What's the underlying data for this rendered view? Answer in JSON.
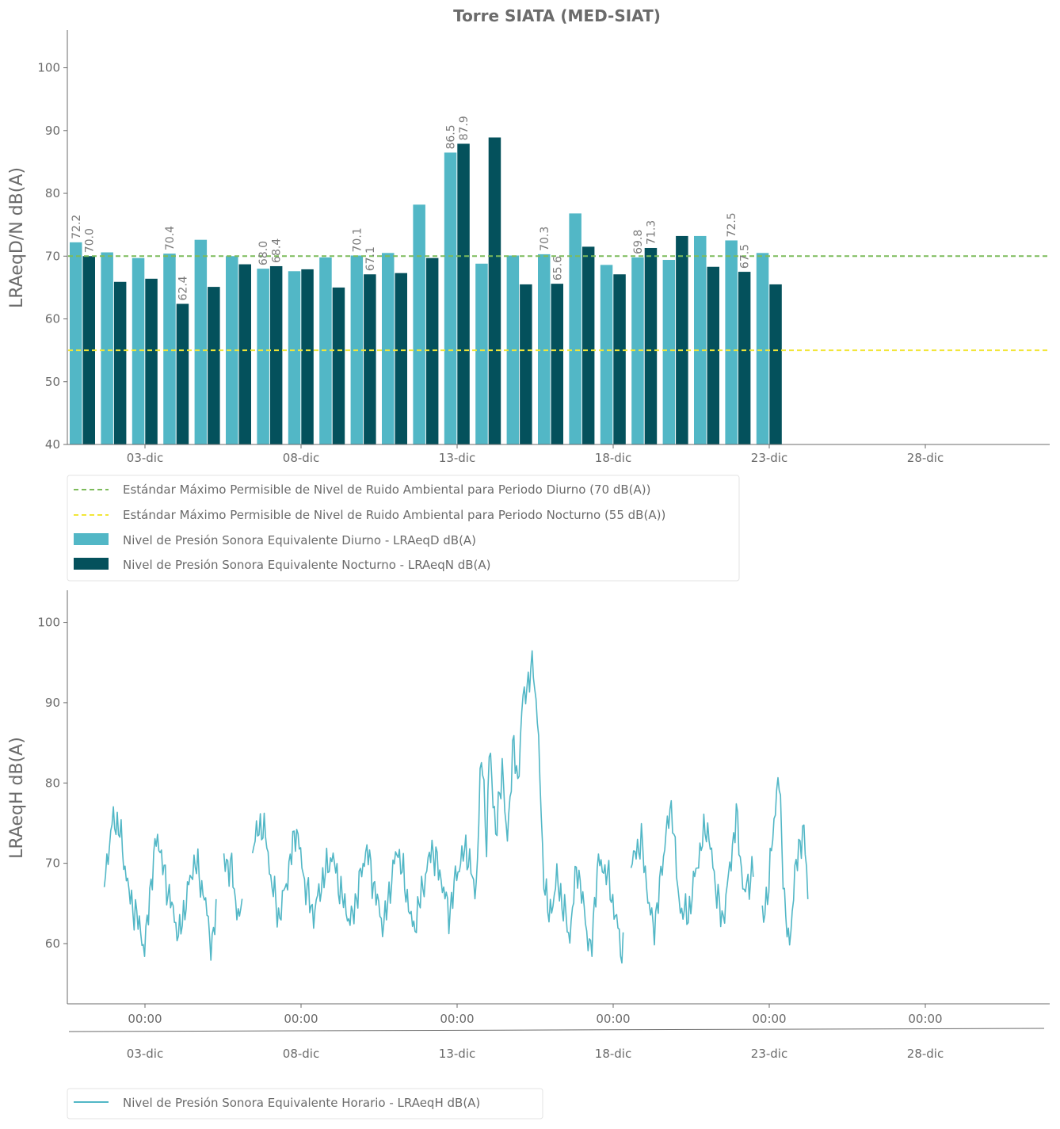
{
  "title": "Torre SIATA (MED-SIAT)",
  "colors": {
    "day": "#52b7c6",
    "night": "#04515c",
    "std_day": "#7dbb5b",
    "std_night": "#f2e637",
    "hourly": "#52b7c6",
    "axis": "#6b6b6b",
    "text": "#6b6b6b"
  },
  "chart_data": [
    {
      "type": "bar",
      "ylabel": "LRAeqD/N dB(A)",
      "ylim": [
        40,
        106
      ],
      "yticks": [
        40,
        50,
        60,
        70,
        80,
        90,
        100
      ],
      "xticks": [
        "03-dic",
        "08-dic",
        "13-dic",
        "18-dic",
        "23-dic",
        "28-dic"
      ],
      "categories": [
        "01-dic",
        "02-dic",
        "03-dic",
        "04-dic",
        "05-dic",
        "06-dic",
        "07-dic",
        "08-dic",
        "09-dic",
        "10-dic",
        "11-dic",
        "12-dic",
        "13-dic",
        "14-dic",
        "15-dic",
        "16-dic",
        "17-dic",
        "18-dic",
        "19-dic",
        "20-dic",
        "21-dic",
        "22-dic",
        "23-dic"
      ],
      "series": [
        {
          "name": "Nivel de Presión Sonora Equivalente Diurno - LRAeqD dB(A)",
          "key": "day",
          "values": [
            72.2,
            70.6,
            69.7,
            70.4,
            72.6,
            70.0,
            68.0,
            67.6,
            69.8,
            70.1,
            70.5,
            78.2,
            86.5,
            68.8,
            70.1,
            70.3,
            76.8,
            68.6,
            69.8,
            69.4,
            73.2,
            72.5,
            70.5
          ]
        },
        {
          "name": "Nivel de Presión Sonora Equivalente Nocturno - LRAeqN dB(A)",
          "key": "night",
          "values": [
            70.0,
            65.9,
            66.4,
            62.4,
            65.1,
            68.7,
            68.4,
            67.9,
            65.0,
            67.1,
            67.3,
            69.7,
            87.9,
            88.9,
            65.5,
            65.6,
            71.5,
            67.1,
            71.3,
            73.2,
            68.3,
            67.5,
            65.5
          ]
        }
      ],
      "data_labels": [
        {
          "day": 0,
          "series": "day",
          "text": "72.2"
        },
        {
          "day": 0,
          "series": "night",
          "text": "70.0"
        },
        {
          "day": 3,
          "series": "day",
          "text": "70.4"
        },
        {
          "day": 3,
          "series": "night",
          "text": "62.4"
        },
        {
          "day": 6,
          "series": "day",
          "text": "68.0"
        },
        {
          "day": 6,
          "series": "night",
          "text": "68.4"
        },
        {
          "day": 9,
          "series": "day",
          "text": "70.1"
        },
        {
          "day": 9,
          "series": "night",
          "text": "67.1"
        },
        {
          "day": 12,
          "series": "day",
          "text": "86.5"
        },
        {
          "day": 12,
          "series": "night",
          "text": "87.9"
        },
        {
          "day": 15,
          "series": "day",
          "text": "70.3"
        },
        {
          "day": 15,
          "series": "night",
          "text": "65.6"
        },
        {
          "day": 18,
          "series": "day",
          "text": "69.8"
        },
        {
          "day": 18,
          "series": "night",
          "text": "71.3"
        },
        {
          "day": 21,
          "series": "day",
          "text": "72.5"
        },
        {
          "day": 21,
          "series": "night",
          "text": "67.5"
        }
      ],
      "reference_lines": [
        {
          "name": "Estándar Máximo Permisible de Nivel de Ruido Ambiental para Periodo Diurno (70 dB(A))",
          "y": 70,
          "color_key": "std_day",
          "style": "dashed"
        },
        {
          "name": "Estándar Máximo Permisible de Nivel de Ruido Ambiental para Periodo Nocturno (55 dB(A))",
          "y": 55,
          "color_key": "std_night",
          "style": "dashed"
        }
      ],
      "legend_placement": "below"
    },
    {
      "type": "line",
      "ylabel": "LRAeqH dB(A)",
      "ylim": [
        52.5,
        104
      ],
      "yticks": [
        60,
        70,
        80,
        90,
        100
      ],
      "xticks_time": [
        "00:00",
        "00:00",
        "00:00",
        "00:00",
        "00:00",
        "00:00"
      ],
      "xticks_date": [
        "03-dic",
        "08-dic",
        "13-dic",
        "18-dic",
        "23-dic",
        "28-dic"
      ],
      "x_range_days": [
        "01-dic",
        "23-dic"
      ],
      "x_step": "1 hora",
      "series": [
        {
          "name": "Nivel de Presión Sonora Equivalente Horario - LRAeqH dB(A)",
          "key": "hourly"
        }
      ],
      "keypoints": [
        [
          0.7,
          68
        ],
        [
          1.0,
          75.8
        ],
        [
          1.2,
          74
        ],
        [
          1.5,
          66
        ],
        [
          1.85,
          62
        ],
        [
          2.0,
          58.9
        ],
        [
          2.15,
          66
        ],
        [
          2.4,
          73.8
        ],
        [
          2.6,
          69
        ],
        [
          2.9,
          64
        ],
        [
          3.1,
          60.8
        ],
        [
          3.35,
          66
        ],
        [
          3.6,
          70.5
        ],
        [
          3.9,
          66
        ],
        [
          4.15,
          59.4
        ],
        [
          4.3,
          64.5
        ],
        [
          4.55,
          70.5
        ],
        [
          4.8,
          69
        ],
        [
          4.95,
          64
        ],
        [
          5.1,
          63.5
        ],
        [
          5.5,
          73
        ],
        [
          5.8,
          75
        ],
        [
          6.05,
          68
        ],
        [
          6.3,
          63
        ],
        [
          6.6,
          69
        ],
        [
          6.85,
          74.6
        ],
        [
          7.1,
          68
        ],
        [
          7.4,
          63.5
        ],
        [
          7.7,
          68
        ],
        [
          8.0,
          71
        ],
        [
          8.3,
          66
        ],
        [
          8.6,
          62.5
        ],
        [
          8.85,
          67
        ],
        [
          9.1,
          72
        ],
        [
          9.4,
          66
        ],
        [
          9.65,
          62
        ],
        [
          9.9,
          68
        ],
        [
          10.1,
          72
        ],
        [
          10.4,
          66
        ],
        [
          10.6,
          61.5
        ],
        [
          10.85,
          66
        ],
        [
          11.2,
          72
        ],
        [
          11.5,
          68
        ],
        [
          11.75,
          63.5
        ],
        [
          12.0,
          69
        ],
        [
          12.3,
          72
        ],
        [
          12.6,
          66
        ],
        [
          12.8,
          84.6
        ],
        [
          12.95,
          72
        ],
        [
          13.05,
          85
        ],
        [
          13.25,
          73
        ],
        [
          13.45,
          82.5
        ],
        [
          13.6,
          72
        ],
        [
          13.8,
          85
        ],
        [
          13.95,
          80
        ],
        [
          14.1,
          90
        ],
        [
          14.3,
          93
        ],
        [
          14.45,
          94.4
        ],
        [
          14.6,
          87
        ],
        [
          14.75,
          70
        ],
        [
          14.95,
          63
        ],
        [
          15.2,
          68
        ],
        [
          15.45,
          64
        ],
        [
          15.6,
          60.5
        ],
        [
          15.85,
          70
        ],
        [
          16.15,
          62
        ],
        [
          16.3,
          58.4
        ],
        [
          16.5,
          70
        ],
        [
          16.8,
          69
        ],
        [
          17.1,
          63
        ],
        [
          17.3,
          58.6
        ],
        [
          17.6,
          70
        ],
        [
          17.9,
          73
        ],
        [
          18.15,
          65
        ],
        [
          18.3,
          61.5
        ],
        [
          18.5,
          67
        ],
        [
          18.7,
          74
        ],
        [
          18.9,
          77
        ],
        [
          19.1,
          65
        ],
        [
          19.4,
          63.3
        ],
        [
          19.7,
          70
        ],
        [
          20.0,
          75
        ],
        [
          20.3,
          67
        ],
        [
          20.5,
          62.5
        ],
        [
          20.7,
          68
        ],
        [
          20.95,
          76
        ],
        [
          21.2,
          66
        ],
        [
          21.5,
          69.5
        ],
        [
          21.8,
          62.5
        ],
        [
          22.0,
          68
        ],
        [
          22.3,
          81.6
        ],
        [
          22.5,
          65
        ],
        [
          22.65,
          58.9
        ],
        [
          22.8,
          68
        ],
        [
          23.1,
          74.8
        ],
        [
          23.25,
          65.6
        ]
      ],
      "gaps": [
        [
          4.32,
          4.5
        ],
        [
          5.12,
          5.42
        ],
        [
          17.35,
          17.55
        ],
        [
          21.5,
          21.78
        ]
      ],
      "legend_placement": "bottom-left"
    }
  ]
}
